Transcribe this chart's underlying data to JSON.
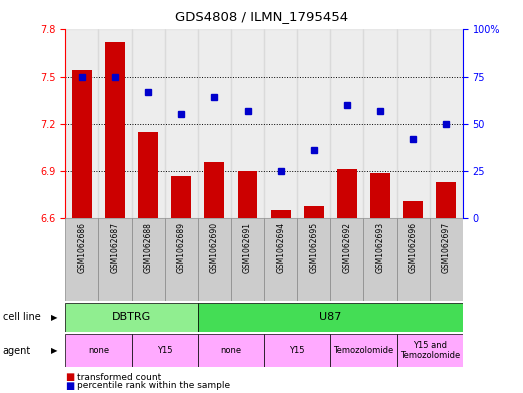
{
  "title": "GDS4808 / ILMN_1795454",
  "samples": [
    "GSM1062686",
    "GSM1062687",
    "GSM1062688",
    "GSM1062689",
    "GSM1062690",
    "GSM1062691",
    "GSM1062694",
    "GSM1062695",
    "GSM1062692",
    "GSM1062693",
    "GSM1062696",
    "GSM1062697"
  ],
  "bar_values": [
    7.54,
    7.72,
    7.15,
    6.87,
    6.96,
    6.9,
    6.65,
    6.68,
    6.91,
    6.89,
    6.71,
    6.83
  ],
  "dot_values": [
    75,
    75,
    67,
    55,
    64,
    57,
    25,
    36,
    60,
    57,
    42,
    50
  ],
  "bar_color": "#cc0000",
  "dot_color": "#0000cc",
  "ylim_left": [
    6.6,
    7.8
  ],
  "ylim_right": [
    0,
    100
  ],
  "yticks_left": [
    6.6,
    6.9,
    7.2,
    7.5,
    7.8
  ],
  "yticks_right": [
    0,
    25,
    50,
    75,
    100
  ],
  "ytick_labels_right": [
    "0",
    "25",
    "50",
    "75",
    "100%"
  ],
  "hlines": [
    6.9,
    7.2,
    7.5
  ],
  "cell_line_groups": [
    {
      "label": "DBTRG",
      "start": 0,
      "end": 3,
      "color": "#90EE90"
    },
    {
      "label": "U87",
      "start": 4,
      "end": 11,
      "color": "#44dd55"
    }
  ],
  "agent_groups": [
    {
      "label": "none",
      "start": 0,
      "end": 1,
      "color": "#ffaaff"
    },
    {
      "label": "Y15",
      "start": 2,
      "end": 3,
      "color": "#ffaaff"
    },
    {
      "label": "none",
      "start": 4,
      "end": 5,
      "color": "#ffaaff"
    },
    {
      "label": "Y15",
      "start": 6,
      "end": 7,
      "color": "#ffaaff"
    },
    {
      "label": "Temozolomide",
      "start": 8,
      "end": 9,
      "color": "#ffaaff"
    },
    {
      "label": "Y15 and\nTemozolomide",
      "start": 10,
      "end": 11,
      "color": "#ffaaff"
    }
  ],
  "legend_bar_label": "transformed count",
  "legend_dot_label": "percentile rank within the sample",
  "cell_line_row_label": "cell line",
  "agent_row_label": "agent",
  "bar_base": 6.6,
  "col_bg_color": "#cccccc",
  "plot_bg_color": "#ffffff"
}
